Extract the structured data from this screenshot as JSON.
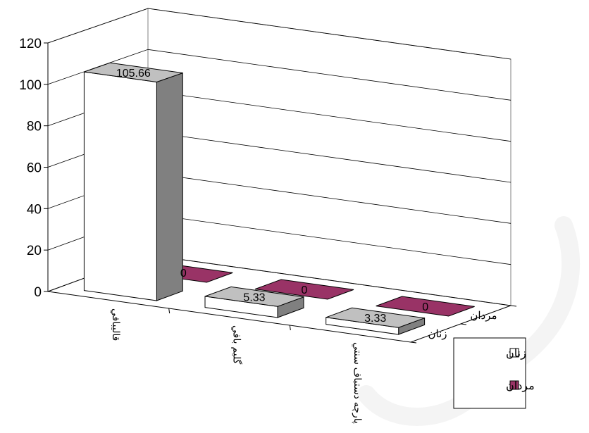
{
  "chart_data": {
    "type": "bar",
    "subtype": "3d-column",
    "categories": [
      "قاليبافي",
      "گليم بافي",
      "پارچه دستباف سنتي"
    ],
    "series": [
      {
        "name": "زنان",
        "values": [
          105.66,
          5.33,
          3.33
        ],
        "color": "#ffffff",
        "label_fill": "#c0c0c0"
      },
      {
        "name": "مردان",
        "values": [
          0,
          0,
          0
        ],
        "color": "#993366"
      }
    ],
    "data_labels": {
      "زنان": [
        "105.66",
        "5.33",
        "3.33"
      ],
      "مردان": [
        "0",
        "0",
        "0"
      ]
    },
    "depth_labels": [
      "زنان",
      "مردان"
    ],
    "yticks": [
      "0",
      "20",
      "40",
      "60",
      "80",
      "100",
      "120"
    ],
    "ylim": [
      0,
      120
    ],
    "grid": true,
    "legend": {
      "position": "bottom-right",
      "entries": [
        "زنان",
        "مردان"
      ]
    },
    "colors": {
      "side_face": "#808080",
      "top_face_women": "#c0c0c0",
      "men": "#993366",
      "gridline": "#000000"
    }
  }
}
